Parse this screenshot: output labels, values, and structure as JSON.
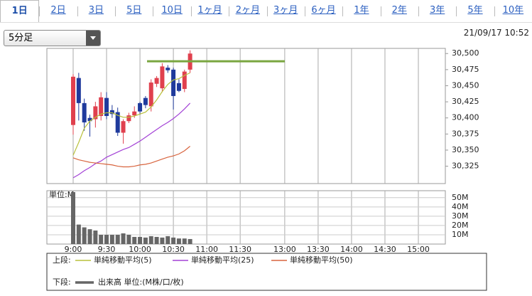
{
  "tabs": [
    "1日",
    "2日",
    "3日",
    "5日",
    "10日",
    "1ヶ月",
    "2ヶ月",
    "3ヶ月",
    "6ヶ月",
    "1年",
    "2年",
    "3年",
    "5年",
    "10年"
  ],
  "selected_tab": 0,
  "dropdown": "5分足",
  "timestamp": "21/09/17 10:52",
  "legend": {
    "upper": "上段:",
    "lower": "下段:"
  },
  "chart_data": [
    {
      "type": "candlestick",
      "x": [
        "9:00",
        "9:05",
        "9:10",
        "9:15",
        "9:20",
        "9:25",
        "9:30",
        "9:35",
        "9:40",
        "9:45",
        "9:50",
        "9:55",
        "10:00",
        "10:05",
        "10:10",
        "10:15",
        "10:20",
        "10:25",
        "10:30",
        "10:35",
        "10:40",
        "10:45"
      ],
      "open": [
        30389,
        30462,
        30423,
        30400,
        30398,
        30403,
        30431,
        30412,
        30409,
        30377,
        30395,
        30404,
        30423,
        30431,
        30418,
        30453,
        30446,
        30478,
        30475,
        30454,
        30445,
        30475
      ],
      "high": [
        30468,
        30470,
        30430,
        30405,
        30425,
        30440,
        30440,
        30420,
        30416,
        30398,
        30408,
        30418,
        30425,
        30434,
        30460,
        30465,
        30485,
        30482,
        30478,
        30460,
        30475,
        30505
      ],
      "low": [
        30374,
        30396,
        30380,
        30371,
        30385,
        30396,
        30398,
        30400,
        30372,
        30360,
        30392,
        30400,
        30405,
        30415,
        30410,
        30448,
        30440,
        30470,
        30413,
        30440,
        30440,
        30470
      ],
      "close": [
        30464,
        30423,
        30393,
        30395,
        30418,
        30432,
        30403,
        30406,
        30377,
        30395,
        30404,
        30410,
        30410,
        30420,
        30455,
        30462,
        30480,
        30474,
        30434,
        30442,
        30472,
        30500
      ],
      "up_color": "#e0404e",
      "down_color": "#1f3a9c",
      "series": [
        {
          "name": "単純移動平均(5)",
          "color": "#b8c03c",
          "values": [
            30342,
            30362,
            30384,
            30395,
            30401,
            30406,
            30408,
            30408,
            30404,
            30401,
            30401,
            30403,
            30406,
            30409,
            30417,
            30428,
            30441,
            30452,
            30459,
            30461,
            30466,
            30470
          ]
        },
        {
          "name": "単純移動平均(25)",
          "color": "#a342d6",
          "values": [
            30307,
            30312,
            30318,
            30323,
            30329,
            30333,
            30339,
            30343,
            30347,
            30351,
            30354,
            30359,
            30364,
            30370,
            30376,
            30382,
            30388,
            30393,
            30399,
            30406,
            30414,
            30423
          ]
        },
        {
          "name": "単純移動平均(50)",
          "color": "#d8643e",
          "values": [
            30338,
            30335,
            30333,
            30331,
            30330,
            30329,
            30328,
            30327,
            30325,
            30324,
            30324,
            30325,
            30327,
            30328,
            30330,
            30333,
            30336,
            30339,
            30341,
            30344,
            30349,
            30356
          ]
        }
      ],
      "reference_line": {
        "value": 30488,
        "color": "#7aa640"
      },
      "ylim": [
        30298,
        30508
      ],
      "yticks": [
        {
          "value": 30325,
          "label": "30,325"
        },
        {
          "value": 30350,
          "label": "30,350"
        },
        {
          "value": 30375,
          "label": "30,375"
        },
        {
          "value": 30400,
          "label": "30,400"
        },
        {
          "value": 30425,
          "label": "30,425"
        },
        {
          "value": 30450,
          "label": "30,450"
        },
        {
          "value": 30475,
          "label": "30,475"
        },
        {
          "value": 30500,
          "label": "30,500"
        }
      ],
      "grid": "x"
    },
    {
      "type": "bar",
      "name": "出来高 単位:(M株/口/枚)",
      "unit_label": "単位:M",
      "color": "#666666",
      "x": [
        "9:00",
        "9:05",
        "9:10",
        "9:15",
        "9:20",
        "9:25",
        "9:30",
        "9:35",
        "9:40",
        "9:45",
        "9:50",
        "9:55",
        "10:00",
        "10:05",
        "10:10",
        "10:15",
        "10:20",
        "10:25",
        "10:30",
        "10:35",
        "10:40",
        "10:45"
      ],
      "values": [
        56,
        21,
        18,
        16,
        14.6,
        10,
        10,
        10,
        10,
        11.5,
        10,
        7.7,
        7.7,
        7,
        8.5,
        7.7,
        7,
        8.5,
        7,
        6,
        6,
        5.4
      ],
      "ylim": [
        0,
        57.5
      ],
      "yticks": [
        {
          "value": 10,
          "label": "10M"
        },
        {
          "value": 20,
          "label": "20M"
        },
        {
          "value": 30,
          "label": "30M"
        },
        {
          "value": 40,
          "label": "40M"
        },
        {
          "value": 50,
          "label": "50M"
        }
      ],
      "xticks": [
        "9:00",
        "9:30",
        "10:00",
        "10:30",
        "11:00",
        "11:30",
        "13:00",
        "13:30",
        "14:00",
        "14:30",
        "15:00"
      ],
      "grid": "xy"
    }
  ]
}
